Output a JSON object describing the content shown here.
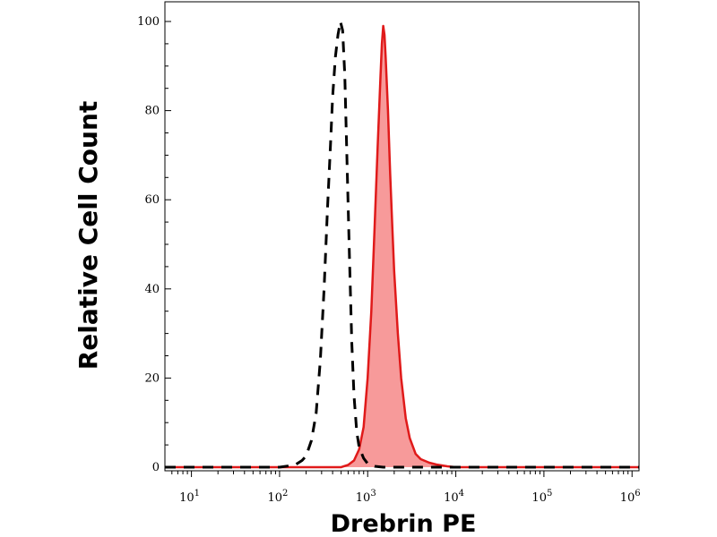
{
  "chart_data": {
    "type": "area",
    "title": "",
    "xlabel": "Drebrin PE",
    "ylabel": "Relative Cell Count",
    "x_scale": "log",
    "xlim": [
      5,
      1200000
    ],
    "ylim": [
      -1,
      103
    ],
    "x_ticks": [
      {
        "base": "10",
        "exp": "1",
        "value": 10
      },
      {
        "base": "10",
        "exp": "2",
        "value": 100
      },
      {
        "base": "10",
        "exp": "3",
        "value": 1000
      },
      {
        "base": "10",
        "exp": "4",
        "value": 10000
      },
      {
        "base": "10",
        "exp": "5",
        "value": 100000
      },
      {
        "base": "10",
        "exp": "6",
        "value": 1000000
      }
    ],
    "y_ticks": [
      "0",
      "20",
      "40",
      "60",
      "80",
      "100"
    ],
    "grid": false,
    "legend": "none",
    "series": [
      {
        "style": "dashed-black-outline",
        "color": "#000000",
        "x": [
          5,
          100,
          150,
          180,
          200,
          230,
          260,
          290,
          320,
          350,
          380,
          400,
          430,
          460,
          490,
          520,
          550,
          580,
          620,
          660,
          700,
          750,
          800,
          900,
          1000,
          1200,
          1500,
          3000,
          10000,
          100000,
          1200000
        ],
        "y": [
          0,
          0,
          0.5,
          1.5,
          2.5,
          6,
          12,
          24,
          40,
          58,
          73,
          83,
          92,
          97,
          100,
          98,
          88,
          70,
          48,
          28,
          16,
          8,
          4.5,
          2,
          0.8,
          0.2,
          0,
          0,
          0,
          0,
          0
        ]
      },
      {
        "style": "filled-red",
        "color": "#e01a1a",
        "fill": "#f79a9a",
        "x": [
          5,
          500,
          600,
          700,
          800,
          900,
          1000,
          1100,
          1200,
          1300,
          1400,
          1450,
          1500,
          1550,
          1600,
          1700,
          1800,
          1900,
          2000,
          2200,
          2400,
          2700,
          3000,
          3500,
          4000,
          5000,
          6000,
          8000,
          10000,
          100000,
          1200000
        ],
        "y": [
          0,
          0,
          0.5,
          1.5,
          4,
          9,
          20,
          35,
          54,
          72,
          88,
          95,
          99,
          97,
          92,
          80,
          66,
          54,
          44,
          30,
          20,
          11,
          6.5,
          3,
          1.8,
          1,
          0.6,
          0.2,
          0,
          0,
          0
        ]
      }
    ]
  }
}
